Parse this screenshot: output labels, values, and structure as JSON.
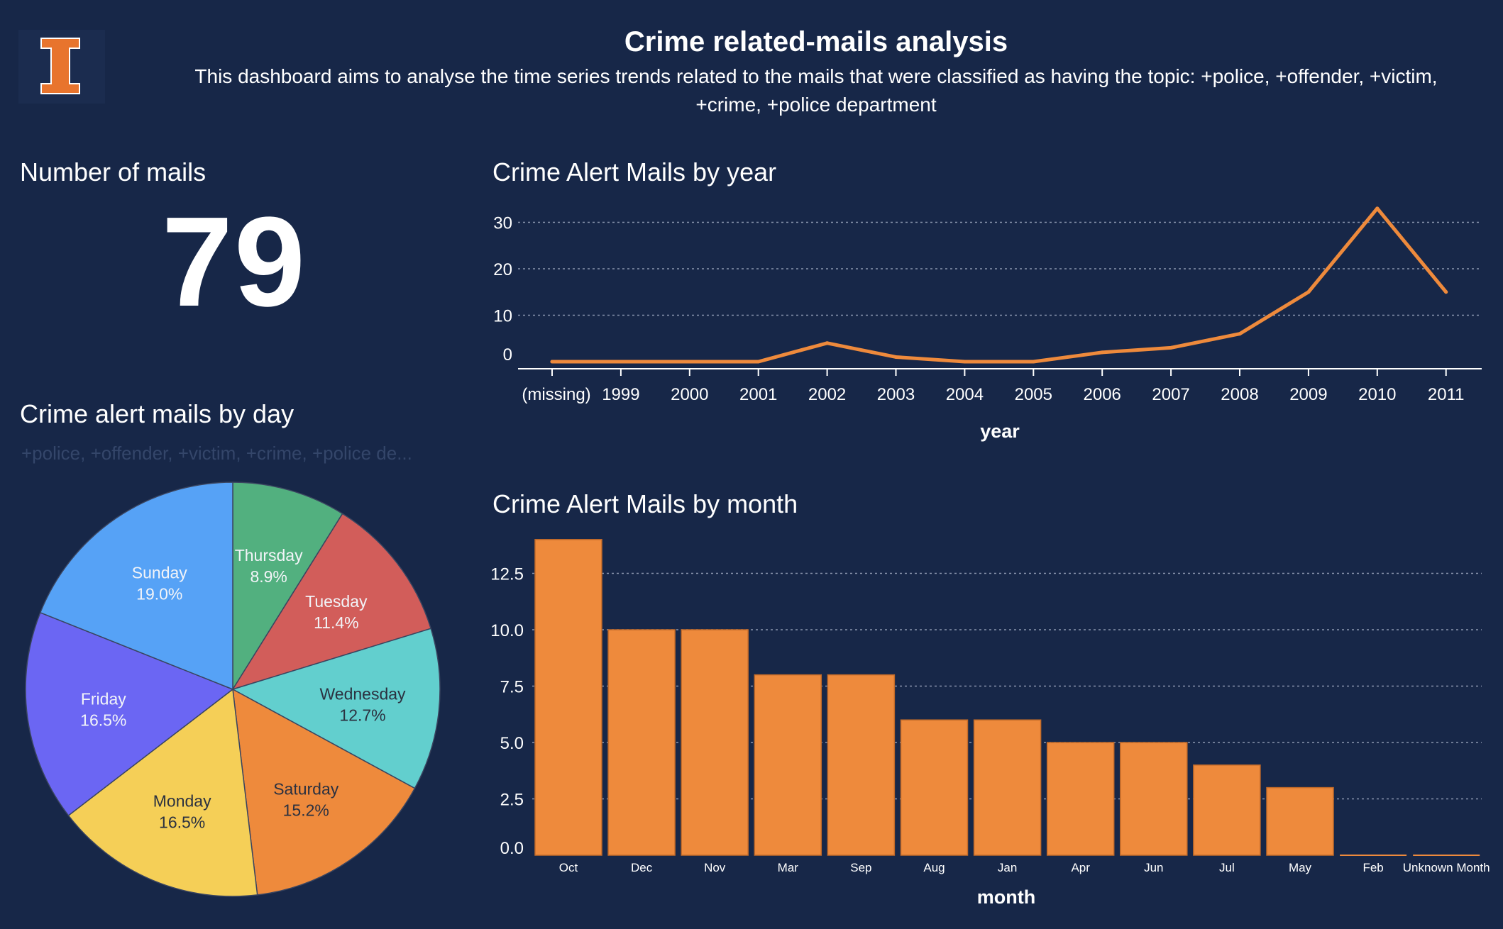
{
  "header": {
    "title": "Crime related-mails analysis",
    "description": "This dashboard aims to analyse the time series trends related to the mails that were classified as having the topic: +police, +offender, +victim, +crime, +police department"
  },
  "logo": {
    "icon": "block-i-logo",
    "color": "#e8742d"
  },
  "kpi": {
    "title": "Number of mails",
    "value": "79"
  },
  "pie_panel": {
    "title": "Crime alert mails by day",
    "subtitle": "+police, +offender, +victim, +crime, +police de..."
  },
  "line_panel": {
    "title": "Crime Alert Mails by year"
  },
  "bar_panel": {
    "title": "Crime Alert Mails by month"
  },
  "chart_data": [
    {
      "type": "line",
      "x": [
        "(missing)",
        "1999",
        "2000",
        "2001",
        "2002",
        "2003",
        "2004",
        "2005",
        "2006",
        "2007",
        "2008",
        "2009",
        "2010",
        "2011"
      ],
      "values": [
        0,
        0,
        0,
        0,
        4,
        1,
        0,
        0,
        2,
        3,
        6,
        15,
        33,
        15
      ],
      "xlabel": "year",
      "ylabel": "",
      "ylim": [
        0,
        33
      ],
      "yticks": [
        0,
        10,
        20,
        30
      ],
      "grid": true,
      "color": "#ee8a3c"
    },
    {
      "type": "bar",
      "categories": [
        "Oct",
        "Dec",
        "Nov",
        "Mar",
        "Sep",
        "Aug",
        "Jan",
        "Apr",
        "Jun",
        "Jul",
        "May",
        "Feb",
        "Unknown Month"
      ],
      "values": [
        14,
        10,
        10,
        8,
        8,
        6,
        6,
        5,
        5,
        4,
        3,
        0,
        0
      ],
      "xlabel": "month",
      "ylabel": "",
      "ylim": [
        0,
        14
      ],
      "yticks": [
        "0.0",
        "2.5",
        "5.0",
        "7.5",
        "10.0",
        "12.5"
      ],
      "grid": true,
      "color": "#ee8a3c"
    },
    {
      "type": "pie",
      "slices": [
        {
          "label": "Thursday",
          "percent": 8.9,
          "display": "8.9%",
          "color": "#52b07f"
        },
        {
          "label": "Tuesday",
          "percent": 11.4,
          "display": "11.4%",
          "color": "#d25d5a"
        },
        {
          "label": "Wednesday",
          "percent": 12.7,
          "display": "12.7%",
          "color": "#62cfce"
        },
        {
          "label": "Saturday",
          "percent": 15.2,
          "display": "15.2%",
          "color": "#ee8a3c"
        },
        {
          "label": "Monday",
          "percent": 16.5,
          "display": "16.5%",
          "color": "#f5cf57"
        },
        {
          "label": "Friday",
          "percent": 16.5,
          "display": "16.5%",
          "color": "#6b66f3"
        },
        {
          "label": "Sunday",
          "percent": 19.0,
          "display": "19.0%",
          "color": "#56a2f6"
        }
      ]
    }
  ]
}
